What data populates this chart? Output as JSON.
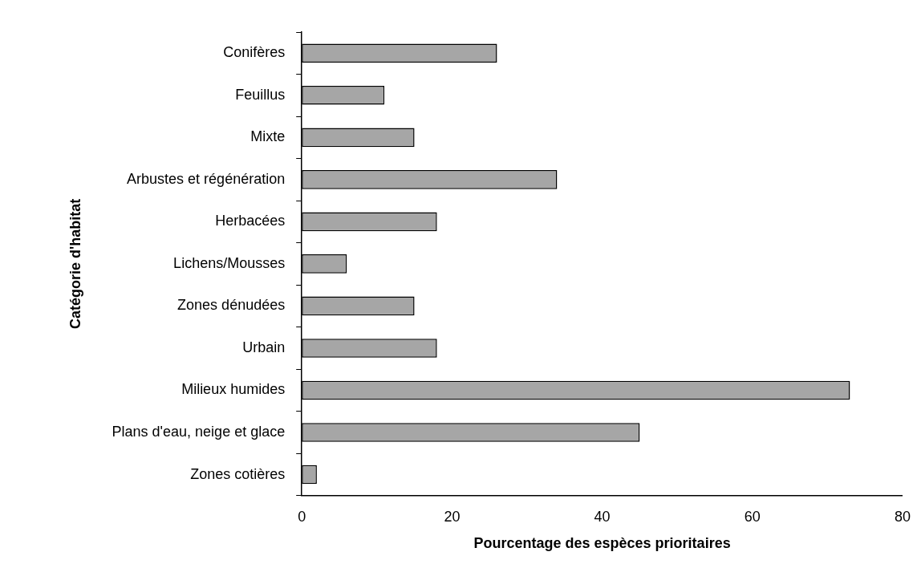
{
  "chart_data": {
    "type": "bar",
    "orientation": "horizontal",
    "xlabel": "Pourcentage des espèces prioritaires",
    "ylabel": "Catégorie d'habitat",
    "categories": [
      "Conifères",
      "Feuillus",
      "Mixte",
      "Arbustes et régénération",
      "Herbacées",
      "Lichens/Mousses",
      "Zones dénudées",
      "Urbain",
      "Milieux humides",
      "Plans d'eau, neige et glace",
      "Zones cotières"
    ],
    "values": [
      26,
      11,
      15,
      34,
      18,
      6,
      15,
      18,
      73,
      45,
      2
    ],
    "color": "#a6a6a6",
    "xlim": [
      0,
      80
    ],
    "xticks": [
      0,
      20,
      40,
      60,
      80
    ],
    "grid": false,
    "legend": false
  }
}
